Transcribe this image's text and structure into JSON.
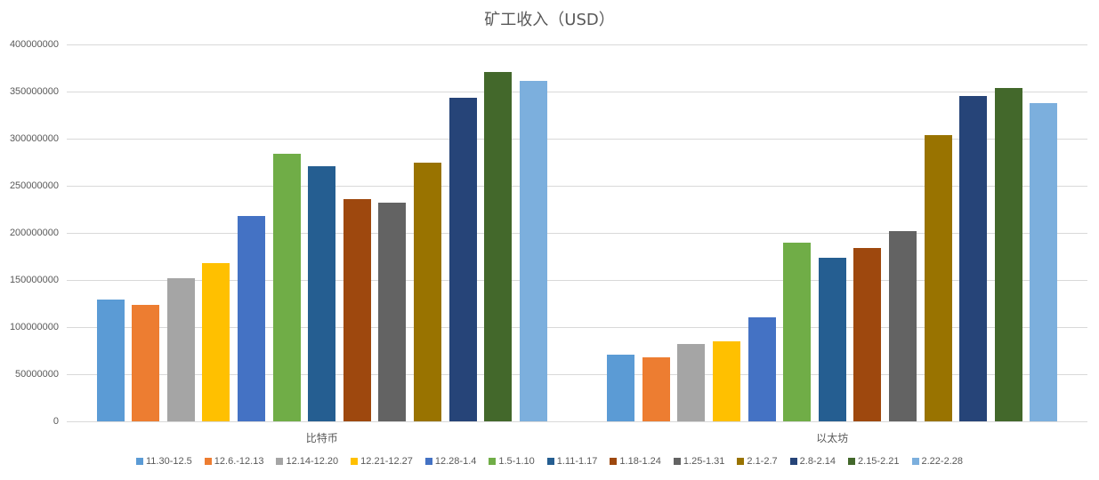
{
  "chart_data": {
    "type": "bar",
    "title": "矿工收入（USD）",
    "xlabel": "",
    "ylabel": "",
    "ylim": [
      0,
      400000000
    ],
    "yticks": [
      0,
      50000000,
      100000000,
      150000000,
      200000000,
      250000000,
      300000000,
      350000000,
      400000000
    ],
    "ytick_labels": [
      "0",
      "50000000",
      "100000000",
      "150000000",
      "200000000",
      "250000000",
      "300000000",
      "350000000",
      "400000000"
    ],
    "grid": true,
    "legend_position": "bottom",
    "categories": [
      "比特币",
      "以太坊"
    ],
    "series": [
      {
        "name": "11.30-12.5",
        "color": "#5B9BD5",
        "values": [
          129000000,
          71000000
        ]
      },
      {
        "name": "12.6.-12.13",
        "color": "#ED7D31",
        "values": [
          124000000,
          68000000
        ]
      },
      {
        "name": "12.14-12.20",
        "color": "#A5A5A5",
        "values": [
          152000000,
          82000000
        ]
      },
      {
        "name": "12.21-12.27",
        "color": "#FFC000",
        "values": [
          168000000,
          85000000
        ]
      },
      {
        "name": "12.28-1.4",
        "color": "#4472C4",
        "values": [
          218000000,
          110000000
        ]
      },
      {
        "name": "1.5-1.10",
        "color": "#70AD47",
        "values": [
          284000000,
          190000000
        ]
      },
      {
        "name": "1.11-1.17",
        "color": "#255E91",
        "values": [
          271000000,
          174000000
        ]
      },
      {
        "name": "1.18-1.24",
        "color": "#9E480E",
        "values": [
          236000000,
          184000000
        ]
      },
      {
        "name": "1.25-1.31",
        "color": "#636363",
        "values": [
          232000000,
          202000000
        ]
      },
      {
        "name": "2.1-2.7",
        "color": "#997300",
        "values": [
          275000000,
          304000000
        ]
      },
      {
        "name": "2.8-2.14",
        "color": "#264478",
        "values": [
          343000000,
          345000000
        ]
      },
      {
        "name": "2.15-2.21",
        "color": "#43682B",
        "values": [
          371000000,
          354000000
        ]
      },
      {
        "name": "2.22-2.28",
        "color": "#7CAFDD",
        "values": [
          361000000,
          338000000
        ]
      }
    ]
  }
}
